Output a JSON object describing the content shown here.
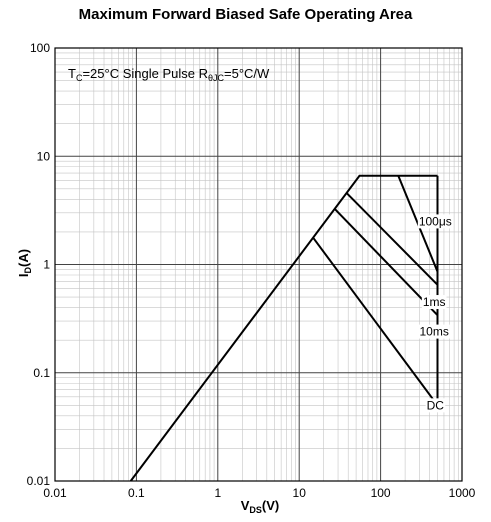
{
  "chart_data": {
    "type": "line",
    "title": "Maximum Forward Biased Safe Operating Area",
    "xscale": "log",
    "yscale": "log",
    "xlim": [
      0.01,
      1000
    ],
    "ylim": [
      0.01,
      100
    ],
    "x_ticks": [
      "0.01",
      "0.1",
      "1",
      "10",
      "100",
      "1000"
    ],
    "y_ticks": [
      "100",
      "10",
      "1",
      "0.1",
      "0.01"
    ],
    "xlabel": {
      "main": "V",
      "sub": "DS",
      "unit": "(V)"
    },
    "ylabel": {
      "main": "I",
      "sub": "D",
      "unit": "(A)"
    },
    "annotation": {
      "t": "T",
      "t_sub": "C",
      "t_rest": "=25°C Single Pulse R",
      "r_sub": "θJC",
      "r_rest": "=5°C/W"
    },
    "grid": true,
    "series": [
      {
        "name": "100μs",
        "x": [
          0.085,
          55,
          165,
          500
        ],
        "y": [
          0.01,
          6.6,
          6.6,
          6.6
        ]
      },
      {
        "name": "1ms",
        "x": [
          38,
          500
        ],
        "y": [
          4.6,
          0.65
        ]
      },
      {
        "name": "10ms",
        "x": [
          27,
          500
        ],
        "y": [
          3.3,
          0.34
        ]
      },
      {
        "name": "DC",
        "x": [
          15,
          500
        ],
        "y": [
          1.75,
          0.05
        ]
      }
    ],
    "vertical_limit": {
      "x": 500,
      "y": [
        0.05,
        6.6
      ]
    },
    "envelope_tail": {
      "x": [
        165,
        500
      ],
      "y": [
        6.6,
        0.86
      ]
    }
  }
}
